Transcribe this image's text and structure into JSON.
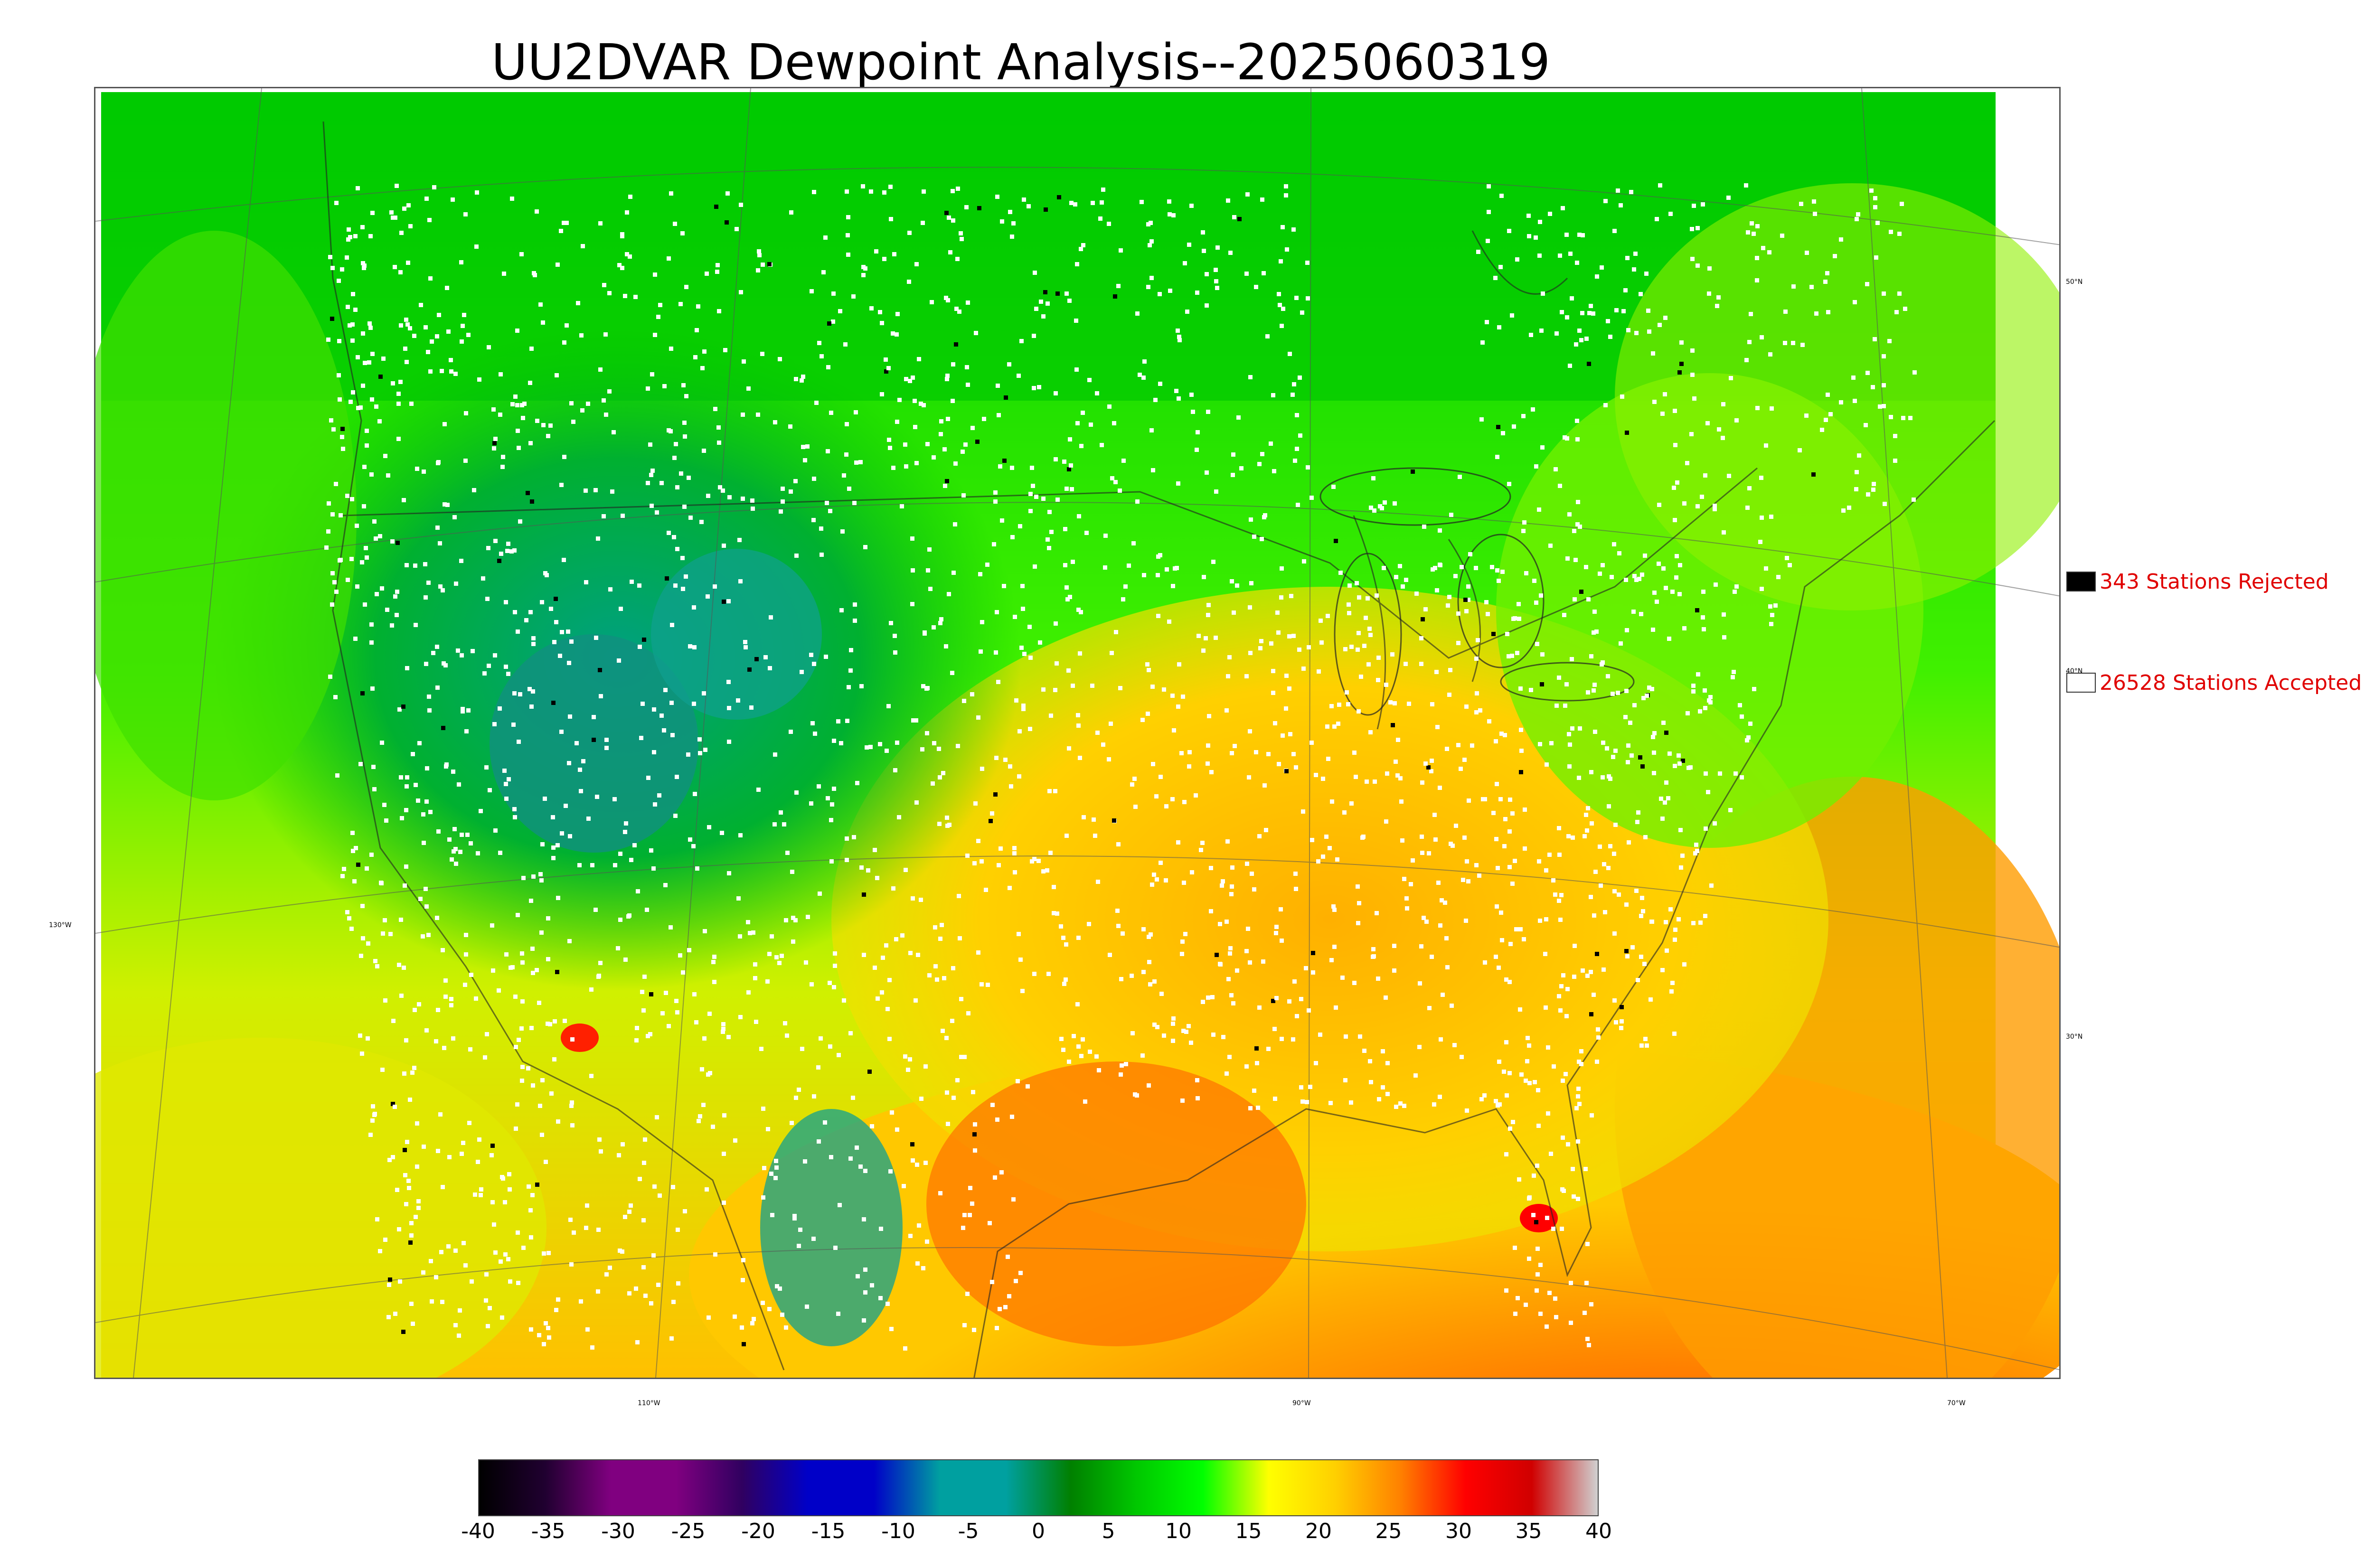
{
  "title": "UU2DVAR Dewpoint Analysis--2025060319",
  "legend": {
    "rejected": {
      "label": "343 Stations Rejected",
      "swatch_color": "#000000"
    },
    "accepted": {
      "label": "26528 Stations Accepted",
      "swatch_color": "#ffffff"
    }
  },
  "graticule": {
    "latitudes": [
      "50°N",
      "40°N",
      "30°N"
    ],
    "longitudes": [
      "130°W",
      "110°W",
      "90°W",
      "70°W"
    ]
  },
  "colorbar": {
    "ticks": [
      "-40",
      "-35",
      "-30",
      "-25",
      "-20",
      "-15",
      "-10",
      "-5",
      "0",
      "5",
      "10",
      "15",
      "20",
      "25",
      "30",
      "35",
      "40"
    ],
    "range": [
      -40,
      40
    ],
    "colors": [
      "#000000",
      "#200030",
      "#800080",
      "#800080",
      "#300060",
      "#0000c8",
      "#0000c8",
      "#00a0a0",
      "#00a0a0",
      "#008000",
      "#00c800",
      "#00ff00",
      "#ffff00",
      "#ffd000",
      "#ff8000",
      "#ff0000",
      "#d00000",
      "#d0d0d0"
    ]
  },
  "colors": {
    "cold": "#00a0a0",
    "cool": "#00b000",
    "mild": "#00ff00",
    "warm": "#ffd000",
    "hot": "#ff6000",
    "stations": "#ffffff",
    "rejected": "#000000"
  }
}
